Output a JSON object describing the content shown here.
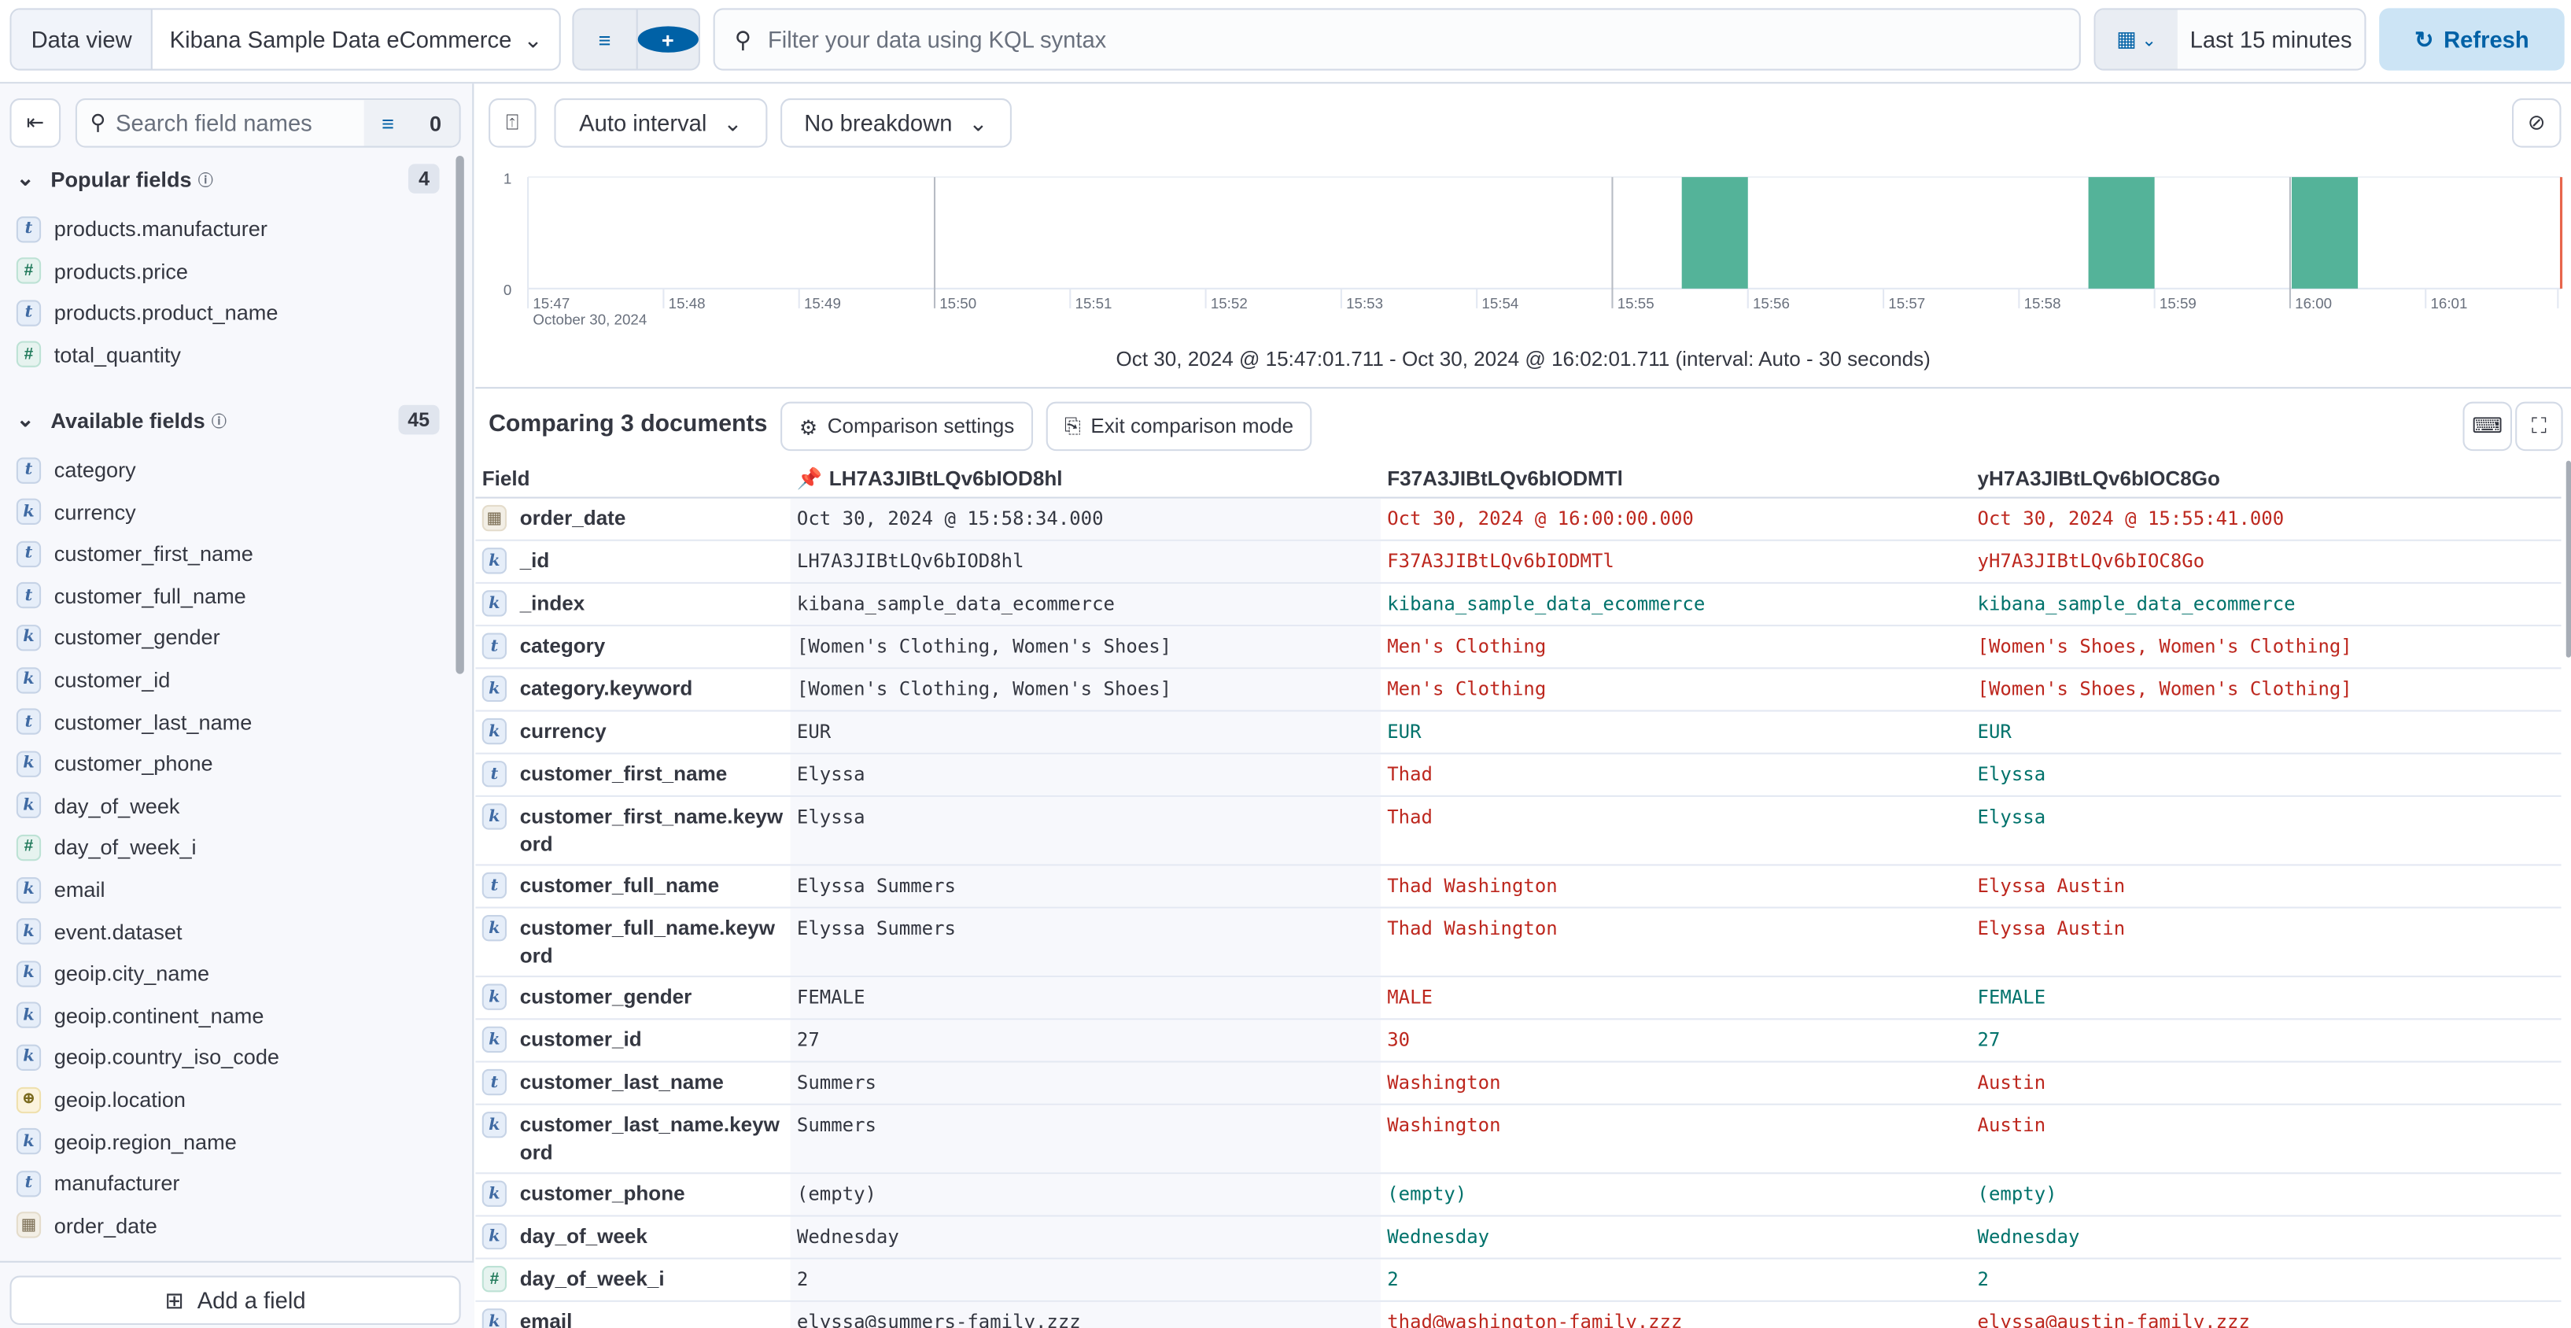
{
  "topbar": {
    "data_view_label": "Data view",
    "data_view_value": "Kibana Sample Data eCommerce",
    "kql_placeholder": "Filter your data using KQL syntax",
    "time_range": "Last 15 minutes",
    "refresh_label": "Refresh"
  },
  "sidebar": {
    "search_placeholder": "Search field names",
    "filter_count": "0",
    "popular": {
      "title": "Popular fields",
      "count": "4",
      "items": [
        {
          "type": "t",
          "name": "products.manufacturer"
        },
        {
          "type": "#",
          "name": "products.price"
        },
        {
          "type": "t",
          "name": "products.product_name"
        },
        {
          "type": "#",
          "name": "total_quantity"
        }
      ]
    },
    "available": {
      "title": "Available fields",
      "count": "45",
      "items": [
        {
          "type": "t",
          "name": "category"
        },
        {
          "type": "k",
          "name": "currency"
        },
        {
          "type": "t",
          "name": "customer_first_name"
        },
        {
          "type": "t",
          "name": "customer_full_name"
        },
        {
          "type": "k",
          "name": "customer_gender"
        },
        {
          "type": "k",
          "name": "customer_id"
        },
        {
          "type": "t",
          "name": "customer_last_name"
        },
        {
          "type": "k",
          "name": "customer_phone"
        },
        {
          "type": "k",
          "name": "day_of_week"
        },
        {
          "type": "#",
          "name": "day_of_week_i"
        },
        {
          "type": "k",
          "name": "email"
        },
        {
          "type": "k",
          "name": "event.dataset"
        },
        {
          "type": "k",
          "name": "geoip.city_name"
        },
        {
          "type": "k",
          "name": "geoip.continent_name"
        },
        {
          "type": "k",
          "name": "geoip.country_iso_code"
        },
        {
          "type": "geo",
          "name": "geoip.location"
        },
        {
          "type": "k",
          "name": "geoip.region_name"
        },
        {
          "type": "t",
          "name": "manufacturer"
        },
        {
          "type": "date",
          "name": "order_date"
        }
      ]
    },
    "add_field_label": "Add a field"
  },
  "chart_toolbar": {
    "interval": "Auto interval",
    "breakdown": "No breakdown"
  },
  "chart_data": {
    "type": "bar",
    "x_ticks": [
      "15:47",
      "15:48",
      "15:49",
      "15:50",
      "15:51",
      "15:52",
      "15:53",
      "15:54",
      "15:55",
      "15:56",
      "15:57",
      "15:58",
      "15:59",
      "16:00",
      "16:01"
    ],
    "x_sublabel": "October 30, 2024",
    "y_ticks": [
      "0",
      "1"
    ],
    "ylim": [
      0,
      1
    ],
    "interval_seconds": 30,
    "bars": [
      {
        "start": "15:55:30",
        "value": 1
      },
      {
        "start": "15:58:30",
        "value": 1
      },
      {
        "start": "16:00:00",
        "value": 1
      }
    ],
    "bar_color": "#54b399",
    "now_marker_color": "#e7664c",
    "range_text": "Oct 30, 2024 @ 15:47:01.711 - Oct 30, 2024 @ 16:02:01.711 (interval: Auto - 30 seconds)"
  },
  "comparison": {
    "title": "Comparing 3 documents",
    "settings_label": "Comparison settings",
    "exit_label": "Exit comparison mode",
    "headers": [
      "Field",
      "LH7A3JIBtLQv6bIOD8hl",
      "F37A3JIBtLQv6bIODMTl",
      "yH7A3JIBtLQv6bIOC8Go"
    ],
    "colors": {
      "diff": "#bd271e",
      "same": "#00726b"
    },
    "rows": [
      {
        "type": "date",
        "field": "order_date",
        "values": [
          "Oct 30, 2024 @ 15:58:34.000",
          "Oct 30, 2024 @ 16:00:00.000",
          "Oct 30, 2024 @ 15:55:41.000"
        ],
        "status": [
          "diff",
          "diff"
        ]
      },
      {
        "type": "k",
        "field": "_id",
        "values": [
          "LH7A3JIBtLQv6bIOD8hl",
          "F37A3JIBtLQv6bIODMTl",
          "yH7A3JIBtLQv6bIOC8Go"
        ],
        "status": [
          "diff",
          "diff"
        ]
      },
      {
        "type": "k",
        "field": "_index",
        "values": [
          "kibana_sample_data_ecommerce",
          "kibana_sample_data_ecommerce",
          "kibana_sample_data_ecommerce"
        ],
        "status": [
          "same",
          "same"
        ]
      },
      {
        "type": "t",
        "field": "category",
        "values": [
          "[Women's Clothing, Women's Shoes]",
          "Men's Clothing",
          "[Women's Shoes, Women's Clothing]"
        ],
        "status": [
          "diff",
          "diff"
        ]
      },
      {
        "type": "k",
        "field": "category.keyword",
        "values": [
          "[Women's Clothing, Women's Shoes]",
          "Men's Clothing",
          "[Women's Shoes, Women's Clothing]"
        ],
        "status": [
          "diff",
          "diff"
        ]
      },
      {
        "type": "k",
        "field": "currency",
        "values": [
          "EUR",
          "EUR",
          "EUR"
        ],
        "status": [
          "same",
          "same"
        ]
      },
      {
        "type": "t",
        "field": "customer_first_name",
        "values": [
          "Elyssa",
          "Thad",
          "Elyssa"
        ],
        "status": [
          "diff",
          "same"
        ]
      },
      {
        "type": "k",
        "field": "customer_first_name.keyword",
        "values": [
          "Elyssa",
          "Thad",
          "Elyssa"
        ],
        "status": [
          "diff",
          "same"
        ]
      },
      {
        "type": "t",
        "field": "customer_full_name",
        "values": [
          "Elyssa Summers",
          "Thad Washington",
          "Elyssa Austin"
        ],
        "status": [
          "diff",
          "diff"
        ]
      },
      {
        "type": "k",
        "field": "customer_full_name.keyword",
        "values": [
          "Elyssa Summers",
          "Thad Washington",
          "Elyssa Austin"
        ],
        "status": [
          "diff",
          "diff"
        ]
      },
      {
        "type": "k",
        "field": "customer_gender",
        "values": [
          "FEMALE",
          "MALE",
          "FEMALE"
        ],
        "status": [
          "diff",
          "same"
        ]
      },
      {
        "type": "k",
        "field": "customer_id",
        "values": [
          "27",
          "30",
          "27"
        ],
        "status": [
          "diff",
          "same"
        ]
      },
      {
        "type": "t",
        "field": "customer_last_name",
        "values": [
          "Summers",
          "Washington",
          "Austin"
        ],
        "status": [
          "diff",
          "diff"
        ]
      },
      {
        "type": "k",
        "field": "customer_last_name.keyword",
        "values": [
          "Summers",
          "Washington",
          "Austin"
        ],
        "status": [
          "diff",
          "diff"
        ]
      },
      {
        "type": "k",
        "field": "customer_phone",
        "values": [
          "(empty)",
          "(empty)",
          "(empty)"
        ],
        "status": [
          "same",
          "same"
        ]
      },
      {
        "type": "k",
        "field": "day_of_week",
        "values": [
          "Wednesday",
          "Wednesday",
          "Wednesday"
        ],
        "status": [
          "same",
          "same"
        ]
      },
      {
        "type": "#",
        "field": "day_of_week_i",
        "values": [
          "2",
          "2",
          "2"
        ],
        "status": [
          "same",
          "same"
        ]
      },
      {
        "type": "k",
        "field": "email",
        "values": [
          "elyssa@summers-family.zzz",
          "thad@washington-family.zzz",
          "elyssa@austin-family.zzz"
        ],
        "status": [
          "diff",
          "diff"
        ]
      }
    ]
  }
}
